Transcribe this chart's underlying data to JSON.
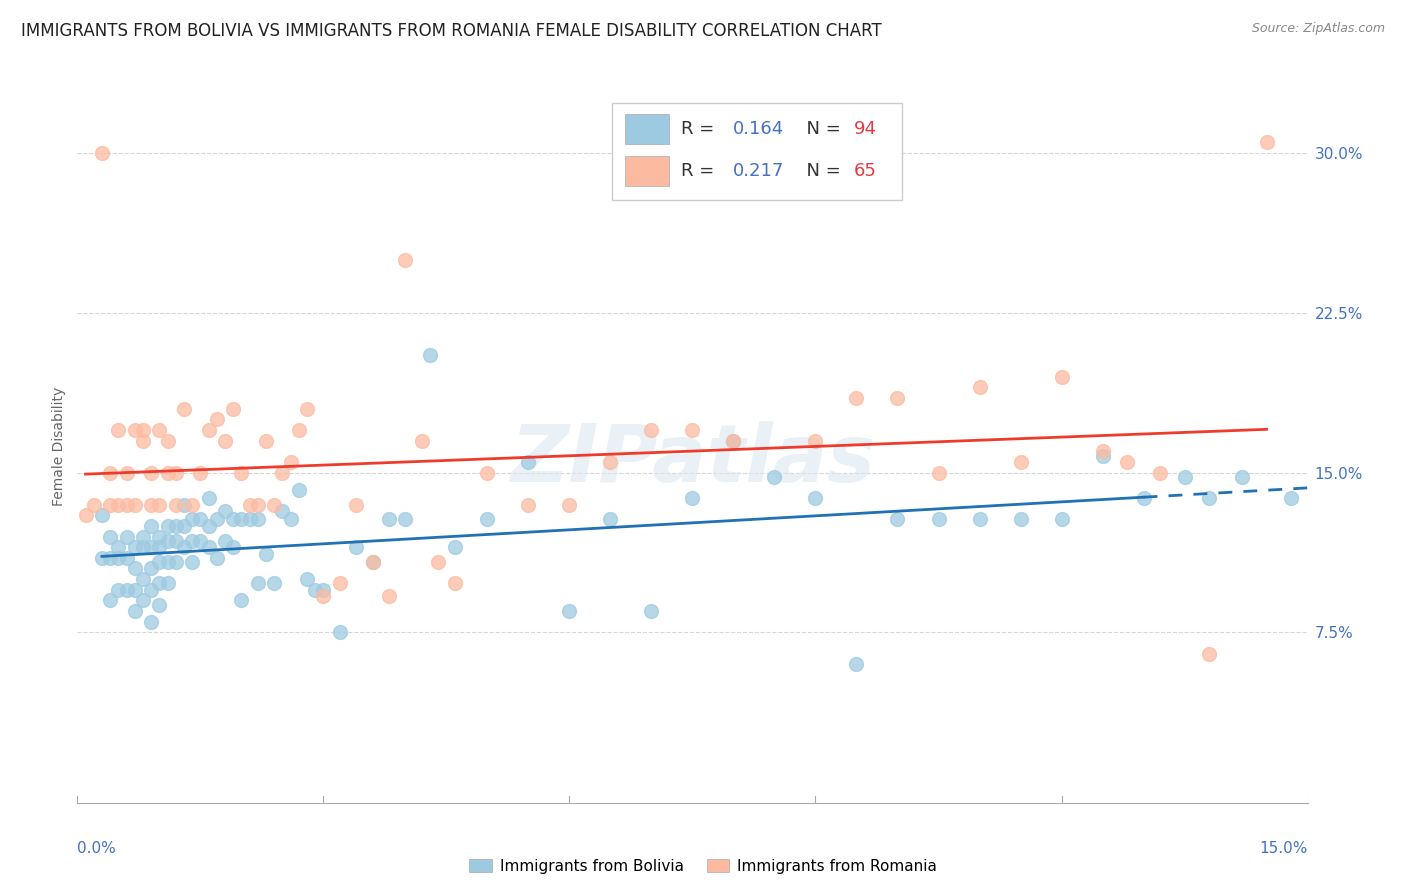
{
  "title": "IMMIGRANTS FROM BOLIVIA VS IMMIGRANTS FROM ROMANIA FEMALE DISABILITY CORRELATION CHART",
  "source": "Source: ZipAtlas.com",
  "ylabel": "Female Disability",
  "yticks": [
    0.0,
    0.075,
    0.15,
    0.225,
    0.3
  ],
  "ytick_labels": [
    "",
    "7.5%",
    "15.0%",
    "22.5%",
    "30.0%"
  ],
  "xlim": [
    0.0,
    0.15
  ],
  "ylim": [
    -0.005,
    0.33
  ],
  "bolivia_color": "#9ecae1",
  "romania_color": "#fcbba1",
  "bolivia_line_color": "#2171b5",
  "romania_line_color": "#ef3b2c",
  "watermark_text": "ZIPatlas",
  "background_color": "#ffffff",
  "grid_color": "#cccccc",
  "legend_R_bolivia": "0.164",
  "legend_N_bolivia": "94",
  "legend_R_romania": "0.217",
  "legend_N_romania": "65",
  "axis_label_color": "#4472c4",
  "bolivia_x": [
    0.003,
    0.003,
    0.004,
    0.004,
    0.004,
    0.005,
    0.005,
    0.005,
    0.006,
    0.006,
    0.006,
    0.007,
    0.007,
    0.007,
    0.007,
    0.008,
    0.008,
    0.008,
    0.008,
    0.009,
    0.009,
    0.009,
    0.009,
    0.009,
    0.01,
    0.01,
    0.01,
    0.01,
    0.01,
    0.011,
    0.011,
    0.011,
    0.011,
    0.012,
    0.012,
    0.012,
    0.013,
    0.013,
    0.013,
    0.014,
    0.014,
    0.014,
    0.015,
    0.015,
    0.016,
    0.016,
    0.016,
    0.017,
    0.017,
    0.018,
    0.018,
    0.019,
    0.019,
    0.02,
    0.02,
    0.021,
    0.022,
    0.022,
    0.023,
    0.024,
    0.025,
    0.026,
    0.027,
    0.028,
    0.029,
    0.03,
    0.032,
    0.034,
    0.036,
    0.038,
    0.04,
    0.043,
    0.046,
    0.05,
    0.055,
    0.06,
    0.065,
    0.07,
    0.075,
    0.08,
    0.085,
    0.09,
    0.095,
    0.1,
    0.105,
    0.11,
    0.115,
    0.12,
    0.125,
    0.13,
    0.135,
    0.138,
    0.142,
    0.148
  ],
  "bolivia_y": [
    0.13,
    0.11,
    0.12,
    0.11,
    0.09,
    0.115,
    0.11,
    0.095,
    0.12,
    0.11,
    0.095,
    0.115,
    0.105,
    0.095,
    0.085,
    0.12,
    0.115,
    0.1,
    0.09,
    0.125,
    0.115,
    0.105,
    0.095,
    0.08,
    0.12,
    0.115,
    0.108,
    0.098,
    0.088,
    0.125,
    0.118,
    0.108,
    0.098,
    0.125,
    0.118,
    0.108,
    0.135,
    0.125,
    0.115,
    0.128,
    0.118,
    0.108,
    0.128,
    0.118,
    0.138,
    0.125,
    0.115,
    0.128,
    0.11,
    0.132,
    0.118,
    0.128,
    0.115,
    0.128,
    0.09,
    0.128,
    0.128,
    0.098,
    0.112,
    0.098,
    0.132,
    0.128,
    0.142,
    0.1,
    0.095,
    0.095,
    0.075,
    0.115,
    0.108,
    0.128,
    0.128,
    0.205,
    0.115,
    0.128,
    0.155,
    0.085,
    0.128,
    0.085,
    0.138,
    0.165,
    0.148,
    0.138,
    0.06,
    0.128,
    0.128,
    0.128,
    0.128,
    0.128,
    0.158,
    0.138,
    0.148,
    0.138,
    0.148,
    0.138
  ],
  "romania_x": [
    0.001,
    0.002,
    0.003,
    0.004,
    0.004,
    0.005,
    0.005,
    0.006,
    0.006,
    0.007,
    0.007,
    0.008,
    0.008,
    0.009,
    0.009,
    0.01,
    0.01,
    0.011,
    0.011,
    0.012,
    0.012,
    0.013,
    0.014,
    0.015,
    0.016,
    0.017,
    0.018,
    0.019,
    0.02,
    0.021,
    0.022,
    0.023,
    0.024,
    0.025,
    0.026,
    0.027,
    0.028,
    0.03,
    0.032,
    0.034,
    0.036,
    0.038,
    0.04,
    0.042,
    0.044,
    0.046,
    0.05,
    0.055,
    0.06,
    0.065,
    0.07,
    0.075,
    0.08,
    0.09,
    0.095,
    0.1,
    0.105,
    0.11,
    0.115,
    0.12,
    0.125,
    0.128,
    0.132,
    0.138,
    0.145
  ],
  "romania_y": [
    0.13,
    0.135,
    0.3,
    0.135,
    0.15,
    0.17,
    0.135,
    0.15,
    0.135,
    0.17,
    0.135,
    0.165,
    0.17,
    0.135,
    0.15,
    0.17,
    0.135,
    0.165,
    0.15,
    0.135,
    0.15,
    0.18,
    0.135,
    0.15,
    0.17,
    0.175,
    0.165,
    0.18,
    0.15,
    0.135,
    0.135,
    0.165,
    0.135,
    0.15,
    0.155,
    0.17,
    0.18,
    0.092,
    0.098,
    0.135,
    0.108,
    0.092,
    0.25,
    0.165,
    0.108,
    0.098,
    0.15,
    0.135,
    0.135,
    0.155,
    0.17,
    0.17,
    0.165,
    0.165,
    0.185,
    0.185,
    0.15,
    0.19,
    0.155,
    0.195,
    0.16,
    0.155,
    0.15,
    0.065,
    0.305
  ]
}
